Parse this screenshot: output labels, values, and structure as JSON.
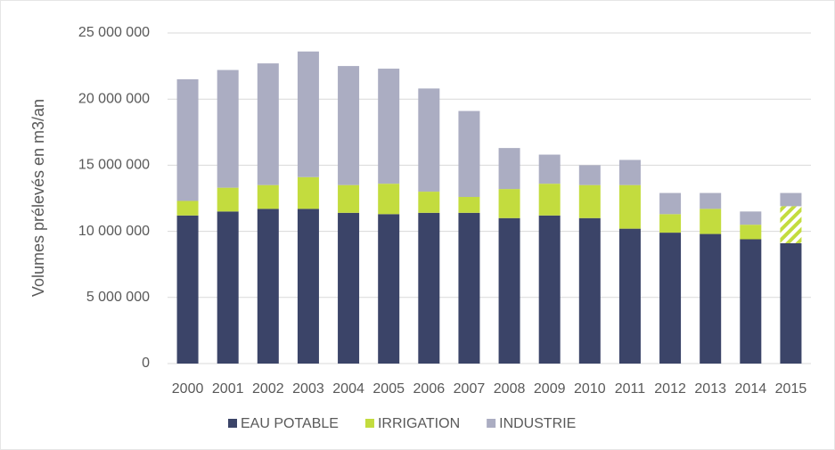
{
  "chart_data": {
    "type": "stacked_bar",
    "y_label": "Volumes prélevés en m3/an",
    "categories": [
      "2000",
      "2001",
      "2002",
      "2003",
      "2004",
      "2005",
      "2006",
      "2007",
      "2008",
      "2009",
      "2010",
      "2011",
      "2012",
      "2013",
      "2014",
      "2015"
    ],
    "series": [
      {
        "name": "EAU POTABLE",
        "color": "#3b4468",
        "values": [
          11200000,
          11500000,
          11700000,
          11700000,
          11400000,
          11300000,
          11400000,
          11400000,
          11000000,
          11200000,
          11000000,
          10200000,
          9900000,
          9800000,
          9400000,
          9100000
        ]
      },
      {
        "name": "IRRIGATION",
        "color": "#c3dc3e",
        "hatch_index": 15,
        "values": [
          1100000,
          1800000,
          1800000,
          2400000,
          2100000,
          2300000,
          1600000,
          1200000,
          2200000,
          2400000,
          2500000,
          3300000,
          1400000,
          1900000,
          1100000,
          2800000
        ]
      },
      {
        "name": "INDUSTRIE",
        "color": "#abadc2",
        "values": [
          9200000,
          8900000,
          9200000,
          9500000,
          9000000,
          8700000,
          7800000,
          6500000,
          3100000,
          2200000,
          1500000,
          1900000,
          1600000,
          1200000,
          1000000,
          1000000
        ]
      }
    ],
    "ylim": [
      0,
      25000000
    ],
    "yticks": [
      0,
      {
        "value": 5000000,
        "label": "5 000 000"
      },
      {
        "value": 10000000,
        "label": "10 000 000"
      },
      {
        "value": 15000000,
        "label": "15 000 000"
      },
      {
        "value": 20000000,
        "label": "20 000 000"
      },
      {
        "value": 25000000,
        "label": "25 000 000"
      }
    ],
    "grid": true,
    "legend": "bottom"
  }
}
